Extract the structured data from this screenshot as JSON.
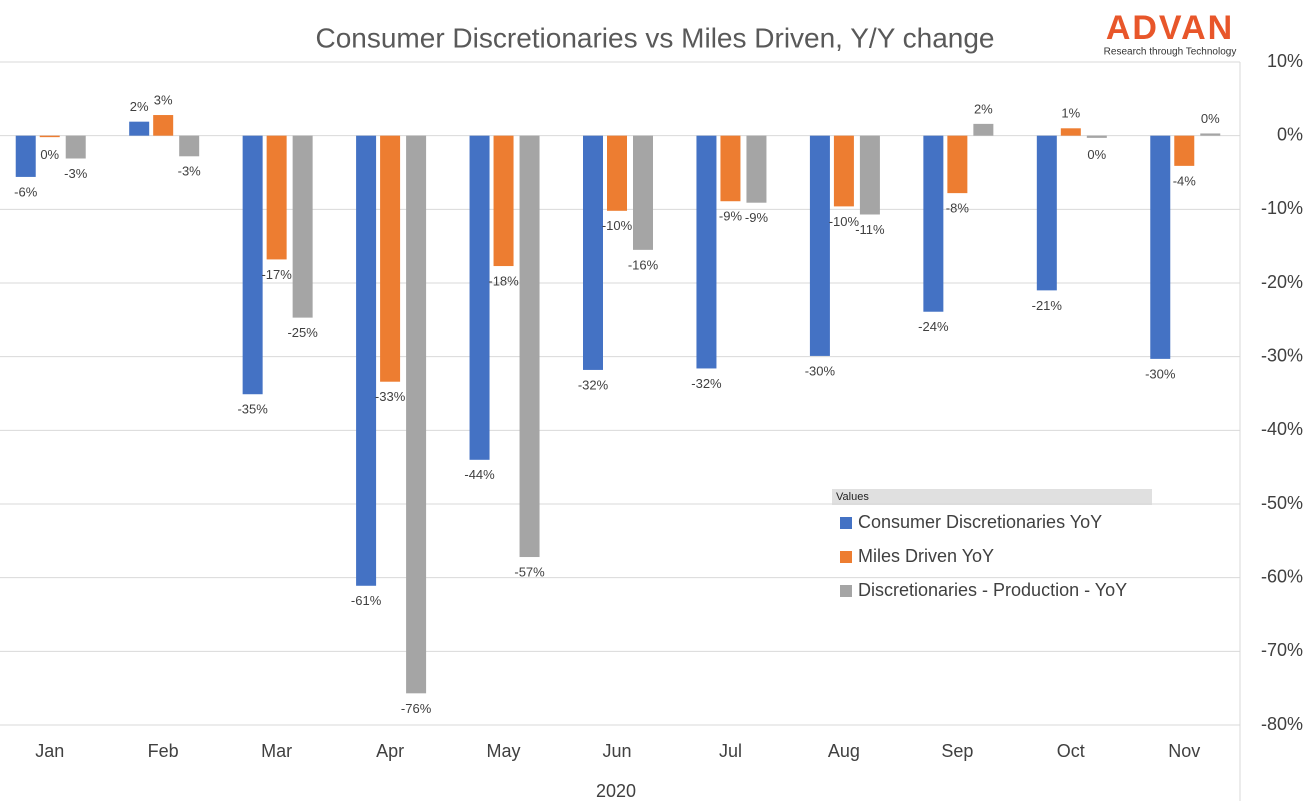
{
  "chart_data": {
    "type": "bar",
    "title": "Consumer Discretionaries vs Miles Driven, Y/Y change",
    "logo": "ADVAN",
    "logo_tagline": "Research through Technology",
    "x_label": "2020",
    "legend_title": "Values",
    "categories": [
      "Jan",
      "Feb",
      "Mar",
      "Apr",
      "May",
      "Jun",
      "Jul",
      "Aug",
      "Sep",
      "Oct",
      "Nov"
    ],
    "series": [
      {
        "name": "Consumer Discretionaries YoY",
        "color": "#4472c4",
        "values": [
          -5.6,
          1.9,
          -35.1,
          -61.1,
          -44,
          -31.8,
          -31.6,
          -29.9,
          -23.9,
          -21,
          -30.3
        ],
        "value_labels": [
          "-6%",
          "2%",
          "-35%",
          "-61%",
          "-44%",
          "-32%",
          "-32%",
          "-30%",
          "-24%",
          "-21%",
          "-30%"
        ]
      },
      {
        "name": "Miles Driven YoY",
        "color": "#ed7d31",
        "values": [
          -0.2,
          2.8,
          -16.8,
          -33.4,
          -17.7,
          -10.2,
          -8.9,
          -9.6,
          -7.8,
          1,
          -4.1
        ],
        "value_labels": [
          "0%",
          "3%",
          "-17%",
          "-33%",
          "-18%",
          "-10%",
          "-9%",
          "-10%",
          "-8%",
          "1%",
          "-4%"
        ]
      },
      {
        "name": "Discretionaries - Production - YoY",
        "color": "#a5a5a5",
        "values": [
          -3.1,
          -2.8,
          -24.7,
          -75.7,
          -57.2,
          -15.5,
          -9.1,
          -10.7,
          1.6,
          -0.3,
          0.3
        ],
        "value_labels": [
          "-3%",
          "-3%",
          "-25%",
          "-76%",
          "-57%",
          "-16%",
          "-9%",
          "-11%",
          "2%",
          "0%",
          "0%"
        ]
      }
    ],
    "ylim": [
      -80,
      10
    ],
    "yticks": [
      {
        "value": 10,
        "label": "10%"
      },
      {
        "value": 0,
        "label": "0%"
      },
      {
        "value": -10,
        "label": "-10%"
      },
      {
        "value": -20,
        "label": "-20%"
      },
      {
        "value": -30,
        "label": "-30%"
      },
      {
        "value": -40,
        "label": "-40%"
      },
      {
        "value": -50,
        "label": "-50%"
      },
      {
        "value": -60,
        "label": "-60%"
      },
      {
        "value": -70,
        "label": "-70%"
      },
      {
        "value": -80,
        "label": "-80%"
      }
    ],
    "grid": true
  }
}
